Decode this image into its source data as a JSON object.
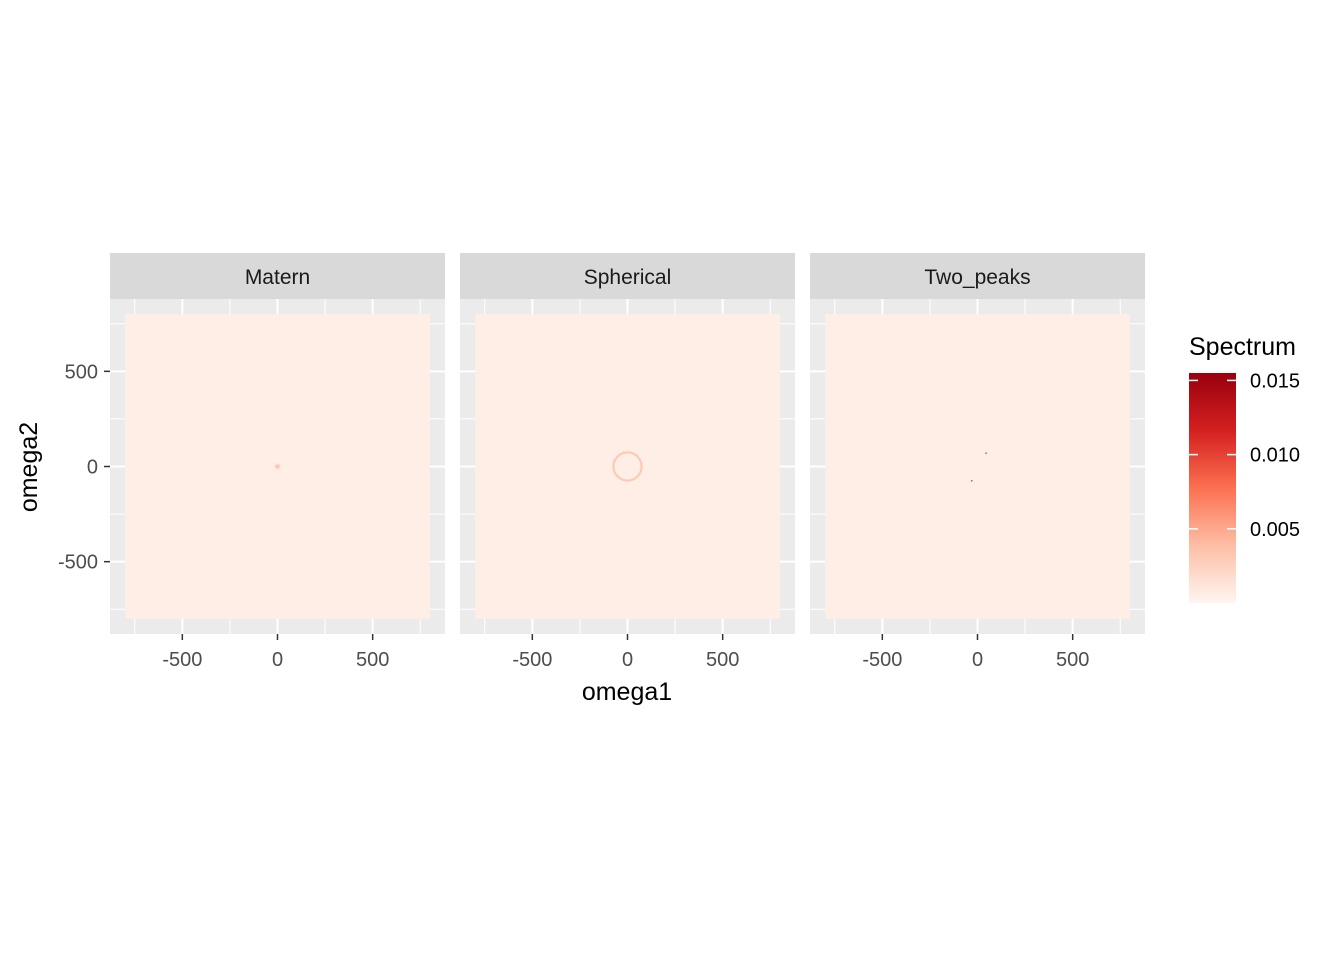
{
  "chart_data": {
    "type": "heatmap",
    "facets": [
      {
        "name": "Matern",
        "features": [
          {
            "kind": "blob",
            "x": 0,
            "y": 0,
            "value": 0.0045,
            "spread": 22
          }
        ]
      },
      {
        "name": "Spherical",
        "features": [
          {
            "kind": "ring",
            "x": 0,
            "y": 0,
            "radius": 74,
            "width": 12,
            "value": 0.0032
          }
        ]
      },
      {
        "name": "Two_peaks",
        "features": [
          {
            "kind": "peak",
            "x": 45,
            "y": 70,
            "value": 0.015,
            "spread": 7
          },
          {
            "kind": "peak",
            "x": -30,
            "y": -75,
            "value": 0.015,
            "spread": 7
          }
        ]
      }
    ],
    "base_value": 0.0005,
    "xlabel": "omega1",
    "ylabel": "omega2",
    "xlim": [
      -880,
      880
    ],
    "ylim": [
      -880,
      880
    ],
    "data_range": [
      -800,
      800
    ],
    "x_ticks": [
      -500,
      0,
      500
    ],
    "y_ticks": [
      -500,
      0,
      500
    ],
    "x_tick_labels": [
      "-500",
      "0",
      "500"
    ],
    "y_tick_labels": [
      "-500",
      "0",
      "500"
    ],
    "grid": true,
    "legend": {
      "title": "Spectrum",
      "placement": "right",
      "min": 0.0,
      "max": 0.0155,
      "breaks": [
        0.005,
        0.01,
        0.015
      ],
      "labels": [
        "0.005",
        "0.010",
        "0.015"
      ],
      "colors": [
        "#fff5f0",
        "#fdbea5",
        "#fc7050",
        "#d42020",
        "#99000d"
      ]
    },
    "panel_background": "#ebebeb",
    "strip_background": "#d9d9d9"
  }
}
